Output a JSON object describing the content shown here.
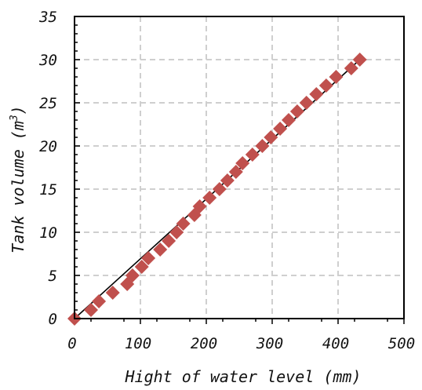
{
  "chart_data": {
    "type": "scatter",
    "xlabel": "Hight of water level (mm)",
    "ylabel_main": "Tank volume (m",
    "ylabel_sup": "3",
    "ylabel_end": ")",
    "xlim": [
      0,
      500
    ],
    "ylim": [
      0,
      35
    ],
    "x_ticks": [
      0,
      100,
      200,
      300,
      400,
      500
    ],
    "y_ticks": [
      0,
      5,
      10,
      15,
      20,
      25,
      30,
      35
    ],
    "x_tick_labels": [
      "0",
      "100",
      "200",
      "300",
      "400",
      "500"
    ],
    "y_tick_labels": [
      "0",
      "5",
      "10",
      "15",
      "20",
      "25",
      "30",
      "35"
    ],
    "grid": true,
    "marker_color": "#c0504d",
    "line_color": "#000000",
    "series": [
      {
        "marker": "diamond",
        "x": [
          0,
          25,
          37,
          58,
          80,
          88,
          102,
          112,
          130,
          143,
          155,
          165,
          182,
          190,
          205,
          220,
          232,
          245,
          255,
          270,
          285,
          298,
          312,
          325,
          338,
          352,
          367,
          382,
          397,
          420,
          433
        ],
        "y": [
          0,
          1,
          2,
          3,
          4,
          5,
          6,
          7,
          8,
          9,
          10,
          11,
          12,
          13,
          14,
          15,
          16,
          17,
          18,
          19,
          20,
          21,
          22,
          23,
          24,
          25,
          26,
          27,
          28,
          29,
          30
        ]
      }
    ],
    "fit_line": {
      "x": [
        0,
        433
      ],
      "y": [
        0,
        30
      ]
    }
  }
}
